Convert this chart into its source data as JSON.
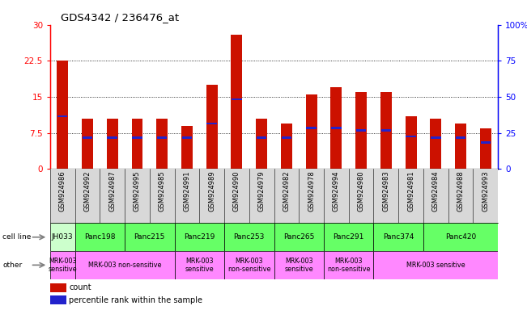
{
  "title": "GDS4342 / 236476_at",
  "samples": [
    "GSM924986",
    "GSM924992",
    "GSM924987",
    "GSM924995",
    "GSM924985",
    "GSM924991",
    "GSM924989",
    "GSM924990",
    "GSM924979",
    "GSM924982",
    "GSM924978",
    "GSM924994",
    "GSM924980",
    "GSM924983",
    "GSM924981",
    "GSM924984",
    "GSM924988",
    "GSM924993"
  ],
  "counts": [
    22.5,
    10.5,
    10.5,
    10.5,
    10.5,
    9.0,
    17.5,
    28.0,
    10.5,
    9.5,
    15.5,
    17.0,
    16.0,
    16.0,
    11.0,
    10.5,
    9.5,
    8.5
  ],
  "percentile_values": [
    11.0,
    6.5,
    6.5,
    6.5,
    6.5,
    6.5,
    9.5,
    14.5,
    6.5,
    6.5,
    8.5,
    8.5,
    8.0,
    8.0,
    6.8,
    6.5,
    6.5,
    5.5
  ],
  "ylim_left": [
    0,
    30
  ],
  "ylim_right": [
    0,
    100
  ],
  "yticks_left": [
    0,
    7.5,
    15,
    22.5,
    30
  ],
  "yticks_right": [
    0,
    25,
    50,
    75,
    100
  ],
  "ytick_labels_left": [
    "0",
    "7.5",
    "15",
    "22.5",
    "30"
  ],
  "ytick_labels_right": [
    "0",
    "25",
    "50",
    "75",
    "100%"
  ],
  "bar_color": "#cc1100",
  "percentile_color": "#2222cc",
  "cell_lines": [
    {
      "name": "JH033",
      "start": 0,
      "end": 1,
      "color": "#ccffcc"
    },
    {
      "name": "Panc198",
      "start": 1,
      "end": 3,
      "color": "#66ff66"
    },
    {
      "name": "Panc215",
      "start": 3,
      "end": 5,
      "color": "#66ff66"
    },
    {
      "name": "Panc219",
      "start": 5,
      "end": 7,
      "color": "#66ff66"
    },
    {
      "name": "Panc253",
      "start": 7,
      "end": 9,
      "color": "#66ff66"
    },
    {
      "name": "Panc265",
      "start": 9,
      "end": 11,
      "color": "#66ff66"
    },
    {
      "name": "Panc291",
      "start": 11,
      "end": 13,
      "color": "#66ff66"
    },
    {
      "name": "Panc374",
      "start": 13,
      "end": 15,
      "color": "#66ff66"
    },
    {
      "name": "Panc420",
      "start": 15,
      "end": 18,
      "color": "#66ff66"
    }
  ],
  "other_labels": [
    {
      "text": "MRK-003\nsensitive",
      "start": 0,
      "end": 1,
      "color": "#ff88ff"
    },
    {
      "text": "MRK-003 non-sensitive",
      "start": 1,
      "end": 5,
      "color": "#ff88ff"
    },
    {
      "text": "MRK-003\nsensitive",
      "start": 5,
      "end": 7,
      "color": "#ff88ff"
    },
    {
      "text": "MRK-003\nnon-sensitive",
      "start": 7,
      "end": 9,
      "color": "#ff88ff"
    },
    {
      "text": "MRK-003\nsensitive",
      "start": 9,
      "end": 11,
      "color": "#ff88ff"
    },
    {
      "text": "MRK-003\nnon-sensitive",
      "start": 11,
      "end": 13,
      "color": "#ff88ff"
    },
    {
      "text": "MRK-003 sensitive",
      "start": 13,
      "end": 18,
      "color": "#ff88ff"
    }
  ],
  "legend_count_color": "#cc1100",
  "legend_percentile_color": "#2222cc",
  "bg_xtick": "#d8d8d8",
  "figure_width": 6.51,
  "figure_height": 3.84,
  "dpi": 100
}
